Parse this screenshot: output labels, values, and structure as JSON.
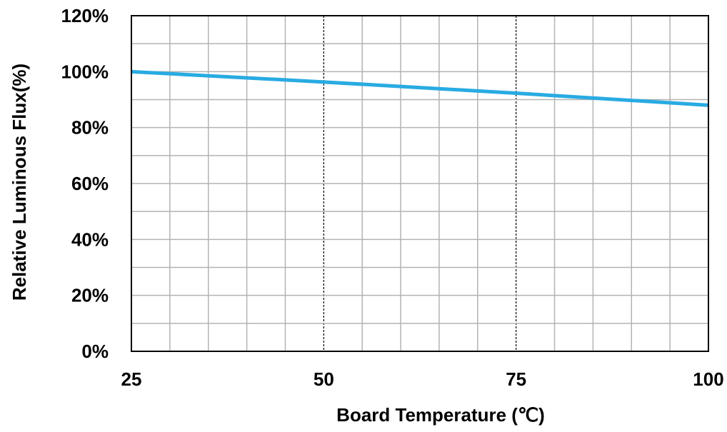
{
  "chart_data": {
    "type": "line",
    "title": "",
    "xlabel": "Board Temperature (℃)",
    "ylabel": "Relative Luminous Flux(%)",
    "xlim": [
      25,
      100
    ],
    "ylim": [
      0,
      120
    ],
    "x_ticks": [
      25,
      50,
      75,
      100
    ],
    "x_tick_labels": [
      "25",
      "50",
      "75",
      "100"
    ],
    "y_ticks": [
      0,
      20,
      40,
      60,
      80,
      100,
      120
    ],
    "y_tick_labels": [
      "0%",
      "20%",
      "40%",
      "60%",
      "80%",
      "100%",
      "120%"
    ],
    "grid": true,
    "x_minor_step": 5,
    "y_minor_step": 10,
    "dashed_gridlines_x": [
      50,
      75
    ],
    "series": [
      {
        "color": "#29ABE2",
        "x": [
          25,
          50,
          75,
          100
        ],
        "y": [
          100,
          96.3,
          92.3,
          88
        ]
      }
    ]
  }
}
